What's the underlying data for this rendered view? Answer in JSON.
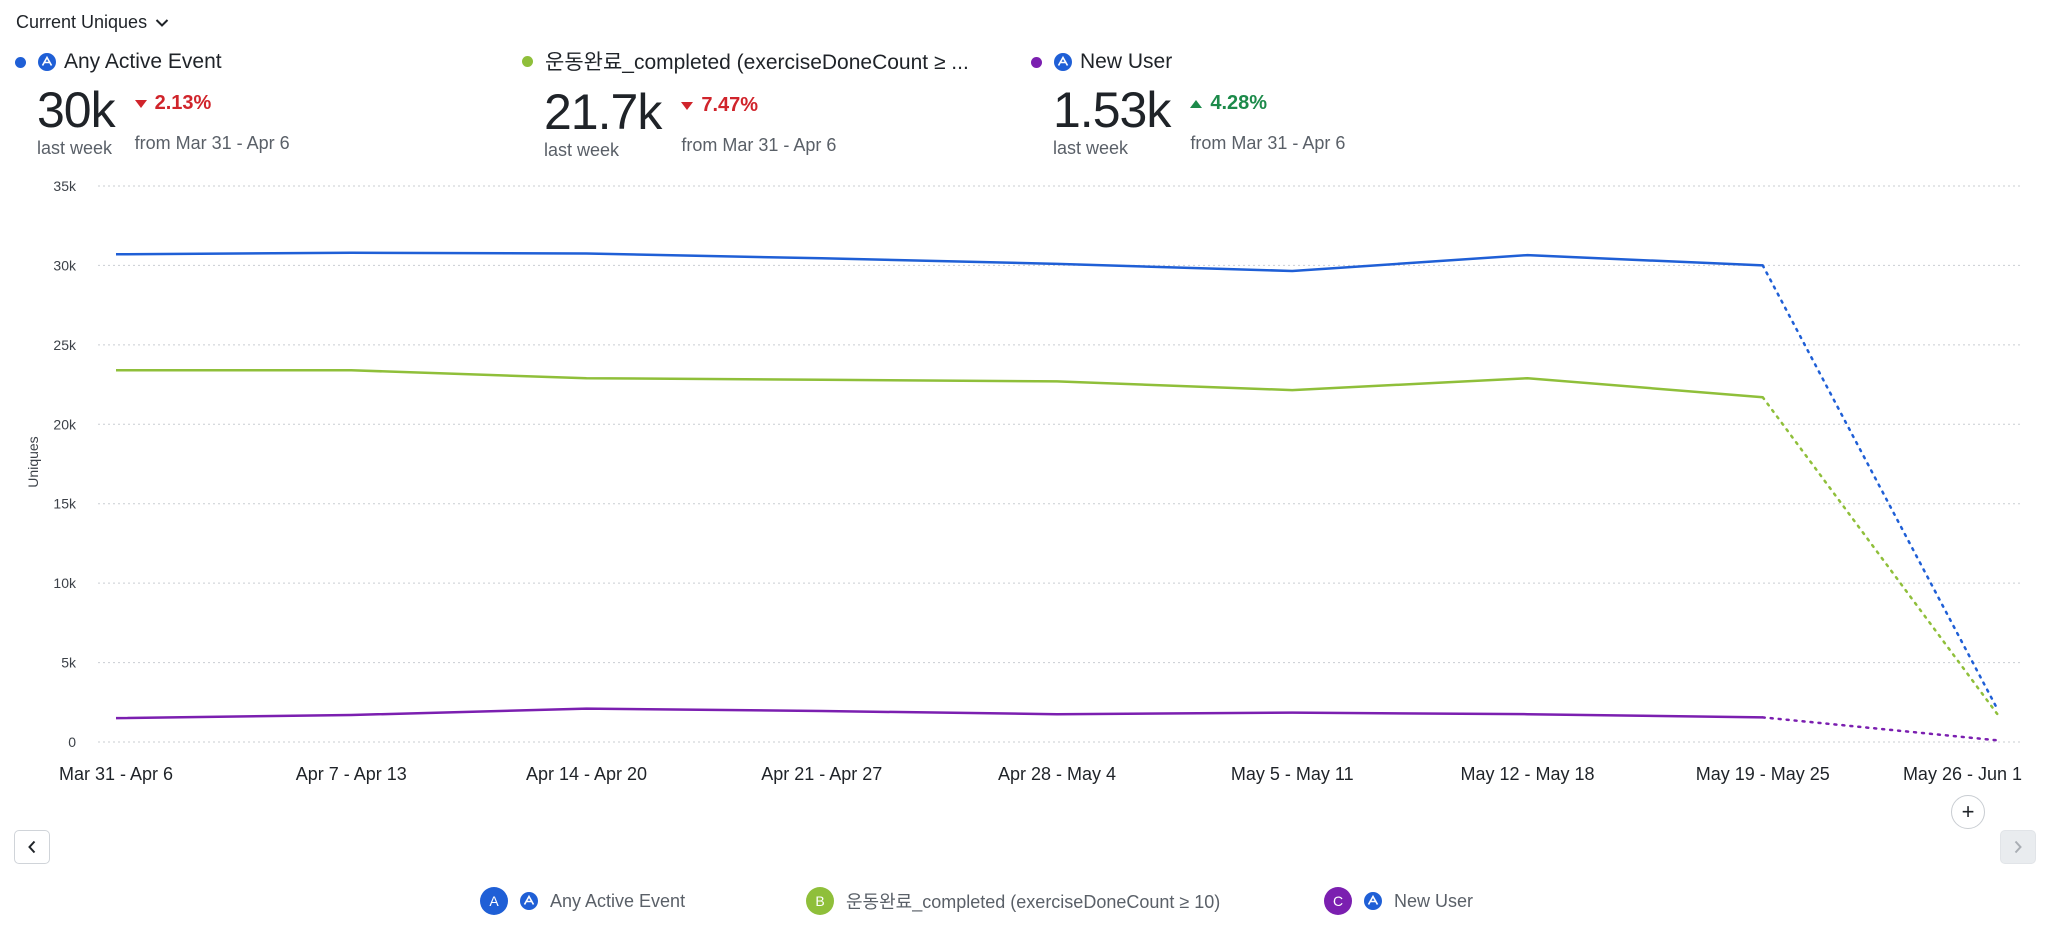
{
  "header": {
    "metric_label": "Current Uniques"
  },
  "kpis": [
    {
      "key": "A",
      "label": "Any Active Event",
      "color": "#1f5fd6",
      "has_icon": true,
      "value": "30k",
      "sub": "last week",
      "delta": "2.13%",
      "direction": "down",
      "from": "from Mar 31 - Apr 6"
    },
    {
      "key": "B",
      "label": "운동완료_completed (exerciseDoneCount ≥ ...",
      "color": "#8fbf3a",
      "has_icon": false,
      "value": "21.7k",
      "sub": "last week",
      "delta": "7.47%",
      "direction": "down",
      "from": "from Mar 31 - Apr 6"
    },
    {
      "key": "C",
      "label": "New User",
      "color": "#7b1fb0",
      "has_icon": true,
      "value": "1.53k",
      "sub": "last week",
      "delta": "4.28%",
      "direction": "up",
      "from": "from Mar 31 - Apr 6"
    }
  ],
  "chart_data": {
    "type": "line",
    "title": "",
    "xlabel": "",
    "ylabel": "Uniques",
    "ylim": [
      0,
      35000
    ],
    "yticks": [
      0,
      5000,
      10000,
      15000,
      20000,
      25000,
      30000,
      35000
    ],
    "ytick_labels": [
      "0",
      "5k",
      "10k",
      "15k",
      "20k",
      "25k",
      "30k",
      "35k"
    ],
    "grid": true,
    "categories": [
      "Mar 31 - Apr 6",
      "Apr 7 - Apr 13",
      "Apr 14 - Apr 20",
      "Apr 21 - Apr 27",
      "Apr 28 - May 4",
      "May 5 - May 11",
      "May 12 - May 18",
      "May 19 - May 25",
      "May 26 - Jun 1"
    ],
    "incomplete_from_index": 7,
    "series": [
      {
        "name": "Any Active Event",
        "color": "#1f5fd6",
        "values": [
          30700,
          30800,
          30750,
          30450,
          30100,
          29650,
          30650,
          30000,
          2000
        ]
      },
      {
        "name": "운동완료_completed (exerciseDoneCount ≥ 10)",
        "color": "#8fbf3a",
        "values": [
          23400,
          23400,
          22900,
          22800,
          22700,
          22150,
          22900,
          21700,
          1700
        ]
      },
      {
        "name": "New User",
        "color": "#7b1fb0",
        "values": [
          1500,
          1700,
          2100,
          1950,
          1750,
          1850,
          1750,
          1550,
          100
        ]
      }
    ]
  },
  "legend": [
    {
      "letter": "A",
      "label": "Any Active Event",
      "color": "#1f5fd6",
      "has_icon": true
    },
    {
      "letter": "B",
      "label": "운동완료_completed (exerciseDoneCount ≥ 10)",
      "color": "#8fbf3a",
      "has_icon": false
    },
    {
      "letter": "C",
      "label": "New User",
      "color": "#7b1fb0",
      "has_icon": true
    }
  ],
  "controls": {
    "add_label": "+"
  },
  "icons": {
    "event_icon": "amplitude-event-icon",
    "chevron": "chevron-down-icon"
  }
}
